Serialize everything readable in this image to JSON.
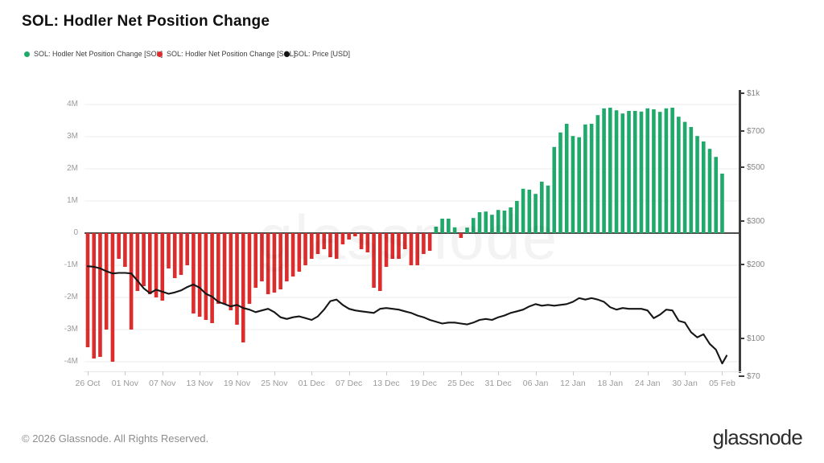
{
  "title": "SOL: Hodler Net Position Change",
  "legend": [
    {
      "label": "SOL: Hodler Net Position Change [SOL]",
      "color": "#1fa96b"
    },
    {
      "label": "SOL: Hodler Net Position Change [SOL]",
      "color": "#dd2c2c"
    },
    {
      "label": "SOL: Price [USD]",
      "color": "#111111"
    }
  ],
  "watermark": "glassnode",
  "footer": {
    "copyright": "© 2026 Glassnode. All Rights Reserved.",
    "logo": "glassnode"
  },
  "chart_data": {
    "type": "bar+line",
    "title": "SOL: Hodler Net Position Change",
    "series": [
      {
        "name": "SOL: Hodler Net Position Change [SOL]",
        "type": "bar",
        "axis": "left",
        "unit": "M SOL"
      },
      {
        "name": "SOL: Price [USD]",
        "type": "line",
        "axis": "right",
        "unit": "USD",
        "scale": "log"
      }
    ],
    "x_start_date": "26 Oct",
    "x_end_date": "05 Feb",
    "x_tick_labels": [
      "26 Oct",
      "01 Nov",
      "07 Nov",
      "13 Nov",
      "19 Nov",
      "25 Nov",
      "01 Dec",
      "07 Dec",
      "13 Dec",
      "19 Dec",
      "25 Dec",
      "31 Dec",
      "06 Jan",
      "12 Jan",
      "18 Jan",
      "24 Jan",
      "30 Jan",
      "05 Feb"
    ],
    "x_tick_day_index": [
      0,
      6,
      12,
      18,
      24,
      30,
      36,
      42,
      48,
      54,
      60,
      66,
      72,
      78,
      84,
      90,
      96,
      102
    ],
    "left_axis": {
      "tick_labels": [
        "4M",
        "3M",
        "2M",
        "1M",
        "0",
        "-1M",
        "-2M",
        "-3M",
        "-4M"
      ],
      "tick_values": [
        4,
        3,
        2,
        1,
        0,
        -1,
        -2,
        -3,
        -4
      ],
      "range": [
        -4.4,
        4.4
      ]
    },
    "right_axis": {
      "tick_labels": [
        "$1k",
        "$700",
        "$500",
        "$300",
        "$200",
        "$100",
        "$70"
      ],
      "tick_values": [
        1000,
        700,
        500,
        300,
        200,
        100,
        70
      ],
      "scale": "log",
      "range": [
        70,
        1000
      ]
    },
    "net_position_change_millions": [
      -3.55,
      -3.9,
      -3.85,
      -3.0,
      -4.0,
      -0.8,
      -1.05,
      -3.0,
      -1.8,
      -1.65,
      -1.9,
      -2.0,
      -2.1,
      -1.1,
      -1.4,
      -1.3,
      -1.0,
      -2.5,
      -2.6,
      -2.7,
      -2.8,
      -2.2,
      -2.2,
      -2.4,
      -2.85,
      -3.4,
      -2.2,
      -1.7,
      -1.5,
      -1.9,
      -1.85,
      -1.75,
      -1.5,
      -1.35,
      -1.2,
      -1.0,
      -0.8,
      -0.65,
      -0.5,
      -0.75,
      -0.8,
      -0.35,
      -0.2,
      -0.1,
      -0.5,
      -0.6,
      -1.7,
      -1.8,
      -1.05,
      -0.8,
      -0.8,
      -0.5,
      -1.0,
      -1.0,
      -0.65,
      -0.55,
      0.2,
      0.45,
      0.45,
      0.18,
      -0.15,
      0.17,
      0.47,
      0.65,
      0.67,
      0.57,
      0.72,
      0.7,
      0.8,
      1.0,
      1.38,
      1.35,
      1.22,
      1.6,
      1.48,
      2.68,
      3.13,
      3.4,
      3.02,
      2.98,
      3.38,
      3.4,
      3.67,
      3.88,
      3.9,
      3.82,
      3.72,
      3.8,
      3.8,
      3.78,
      3.88,
      3.85,
      3.77,
      3.88,
      3.9,
      3.62,
      3.46,
      3.3,
      3.02,
      2.85,
      2.62,
      2.37,
      1.85
    ],
    "price_usd": [
      197,
      196,
      193,
      188,
      184,
      185,
      185,
      184,
      172,
      160,
      153,
      158,
      155,
      152,
      154,
      157,
      162,
      166,
      161,
      152,
      148,
      141,
      138,
      135,
      137,
      133,
      131,
      128,
      130,
      132,
      128,
      122,
      120,
      122,
      123,
      121,
      119,
      123,
      131,
      142,
      144,
      137,
      132,
      130,
      129,
      128,
      127,
      132,
      133,
      132,
      131,
      129,
      127,
      124,
      122,
      119,
      117,
      115,
      116,
      116,
      115,
      114,
      116,
      119,
      120,
      119,
      122,
      124,
      127,
      129,
      131,
      135,
      138,
      136,
      137,
      136,
      137,
      138,
      141,
      146,
      144,
      146,
      144,
      141,
      134,
      131,
      133,
      132,
      132,
      132,
      130,
      121,
      125,
      131,
      130,
      118,
      116,
      106,
      101,
      104,
      95,
      90,
      79
    ],
    "price_tail_usd": 85,
    "colors": {
      "positive": "#1fa96b",
      "negative": "#dd2c2c",
      "price_line": "#161616",
      "zero_line": "#4d4d4d",
      "gridline": "#ededed"
    },
    "legend_position": "top-left",
    "grid": "horizontal-only"
  }
}
